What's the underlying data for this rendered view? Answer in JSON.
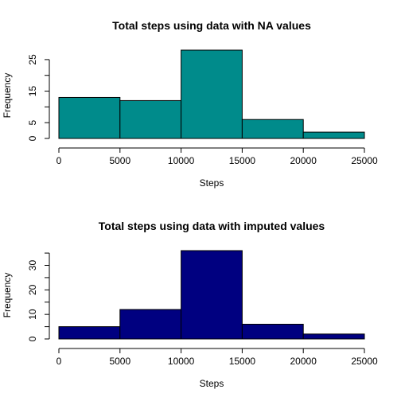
{
  "chart_data": [
    {
      "type": "bar",
      "title": "Total steps using data with NA values",
      "xlabel": "Steps",
      "ylabel": "Frequency",
      "bin_edges": [
        0,
        5000,
        10000,
        15000,
        20000,
        25000
      ],
      "values": [
        13,
        12,
        28,
        6,
        2
      ],
      "xlim": [
        0,
        25000
      ],
      "ylim": [
        0,
        28
      ],
      "xticks": [
        0,
        5000,
        10000,
        15000,
        20000,
        25000
      ],
      "yticks": [
        0,
        5,
        15,
        25
      ],
      "ytick_minor": [
        10,
        20
      ],
      "bar_color": "#008B8B"
    },
    {
      "type": "bar",
      "title": "Total steps using data with imputed values",
      "xlabel": "Steps",
      "ylabel": "Frequency",
      "bin_edges": [
        0,
        5000,
        10000,
        15000,
        20000,
        25000
      ],
      "values": [
        5,
        12,
        36,
        6,
        2
      ],
      "xlim": [
        0,
        25000
      ],
      "ylim": [
        0,
        36
      ],
      "xticks": [
        0,
        5000,
        10000,
        15000,
        20000,
        25000
      ],
      "yticks": [
        0,
        10,
        20,
        30
      ],
      "ytick_minor": [
        5,
        15,
        25,
        35
      ],
      "bar_color": "#000080"
    }
  ]
}
